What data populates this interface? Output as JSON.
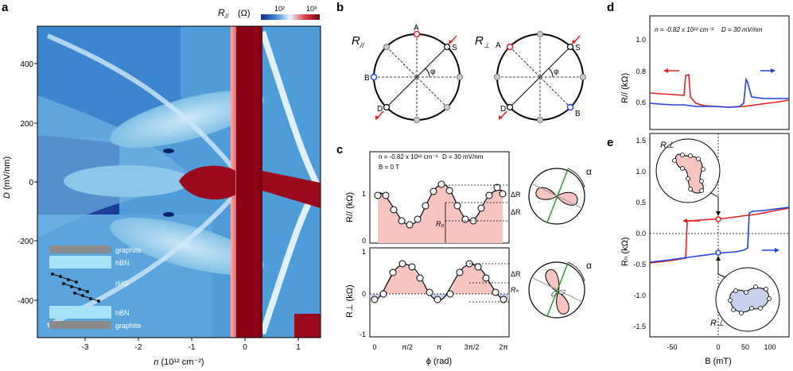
{
  "panel_labels": {
    "a": "a",
    "b": "b",
    "c": "c",
    "d": "d",
    "e": "e"
  },
  "panel_a": {
    "colorbar_label": "R",
    "colorbar_sub": "//",
    "colorbar_unit": "(Ω)",
    "colorbar_ticks": [
      "10²",
      "10³"
    ],
    "ylabel": "D",
    "ylabel_unit": "(mV/nm)",
    "xlabel": "n",
    "xlabel_unit": "(10¹² cm⁻²)",
    "yticks": [
      "400",
      "200",
      "0",
      "-200",
      "-400"
    ],
    "xticks": [
      "-3",
      "-2",
      "-1",
      "0",
      "1"
    ],
    "stack": [
      "graphite",
      "hBN",
      "rHG",
      "hBN",
      "graphite"
    ]
  },
  "panel_b": {
    "left_label": "R",
    "left_sub": "//",
    "right_label": "R",
    "right_sub": "⊥",
    "contacts": [
      "A",
      "B",
      "S",
      "D"
    ],
    "angle": "φ"
  },
  "panel_c": {
    "info_line1": "n = -0.82 x 10¹² cm⁻²",
    "info_line1b": "D = 30 mV/nm",
    "info_line2": "B = 0 T",
    "top_ylabel": "R// (kΩ)",
    "bottom_ylabel": "R⊥ (kΩ)",
    "top_yticks": [
      "1",
      "0"
    ],
    "bottom_yticks": [
      "1",
      "0",
      "-1"
    ],
    "xticks": [
      "0",
      "π/2",
      "π",
      "3π/2",
      "2π"
    ],
    "xlabel": "ϕ (rad)",
    "delta": "ΔR",
    "r0": "R₀",
    "rh": "Rₕ",
    "alpha": "α"
  },
  "panel_d": {
    "info_line1": "n = -0.82 x 10¹² cm⁻²",
    "info_line1b": "D = 30 mV/nm",
    "ylabel": "R// (kΩ)",
    "yticks": [
      "1.0",
      "0.8",
      "0.6"
    ]
  },
  "panel_e": {
    "ylabel": "Rₕ (kΩ)",
    "yticks": [
      "1.5",
      "1.0",
      "0.5",
      "0.0",
      "-0.5",
      "-1.0",
      "-1.5"
    ],
    "xticks": [
      "-50",
      "0",
      "50",
      "100"
    ],
    "xlabel": "B (mT)",
    "inset_top": "R⊥",
    "inset_bottom": "R⊥"
  },
  "colors": {
    "red": "#e02020",
    "blue": "#2040e0",
    "fill": "#f7c4c0",
    "blue_fill": "#c8d0f0"
  }
}
